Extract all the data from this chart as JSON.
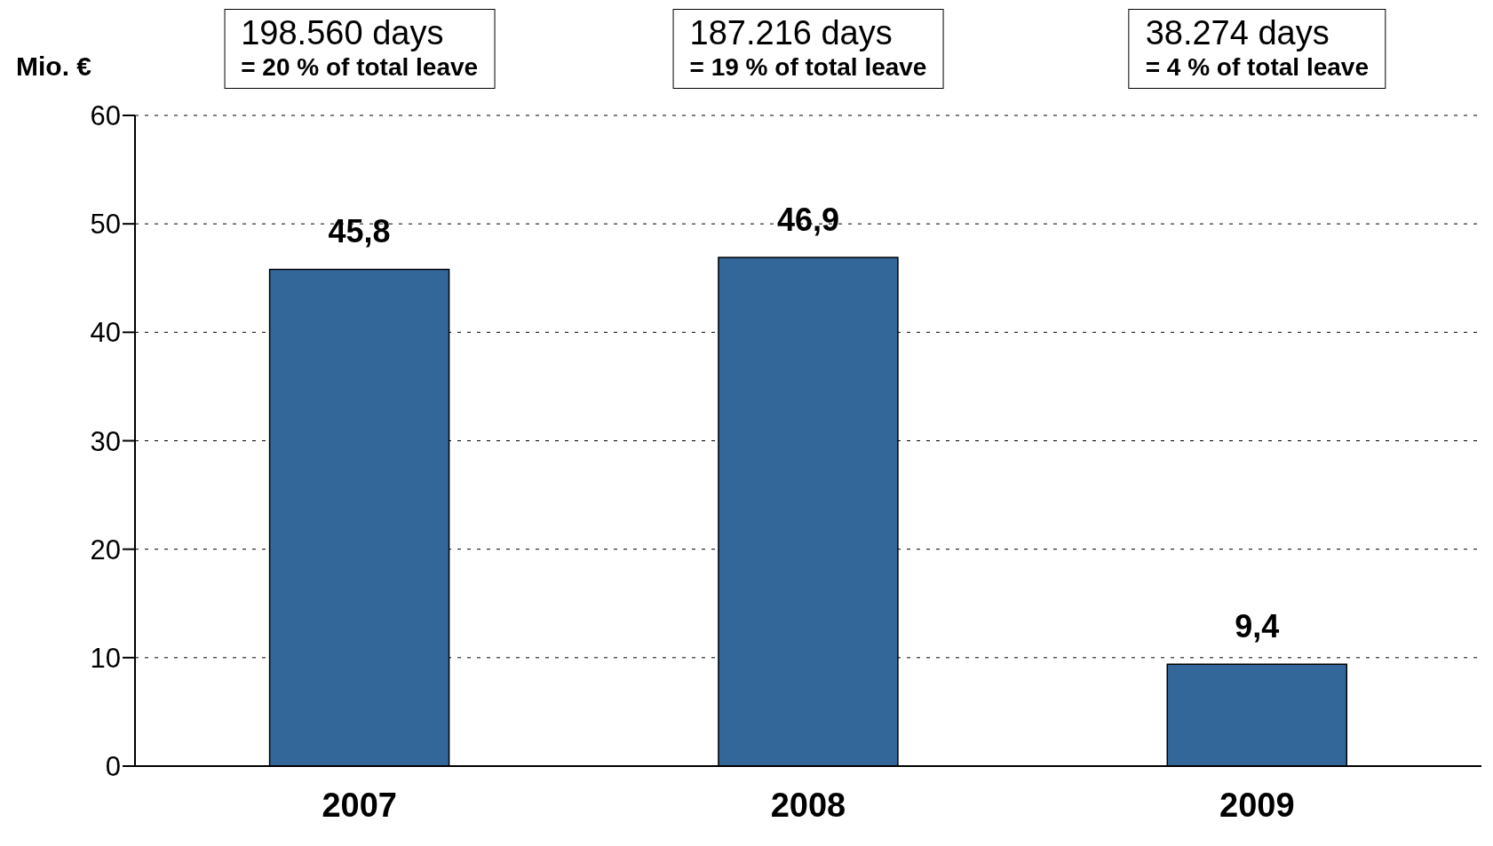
{
  "chart_data": {
    "type": "bar",
    "ylabel": "Mio. €",
    "categories": [
      "2007",
      "2008",
      "2009"
    ],
    "values": [
      45.8,
      46.9,
      9.4
    ],
    "value_labels": [
      "45,8",
      "46,9",
      "9,4"
    ],
    "color": "#336699",
    "ylim": [
      0,
      60
    ],
    "yticks": [
      0,
      10,
      20,
      30,
      40,
      50,
      60
    ],
    "grid": "y",
    "annotations": [
      "198.560 days\n= 20 % of total leave",
      "187.216 days\n= 19 % of total leave",
      "38.274 days\n= 4 % of total leave"
    ]
  }
}
